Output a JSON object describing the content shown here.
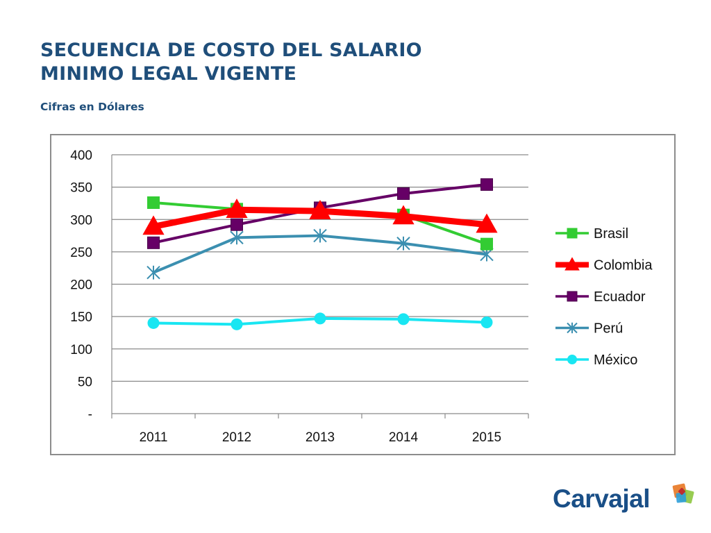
{
  "header": {
    "title_line1": "SECUENCIA DE COSTO DEL SALARIO",
    "title_line2": "MINIMO LEGAL VIGENTE",
    "subtitle": "Cifras en Dólares"
  },
  "brand": {
    "name": "Carvajal",
    "color": "#1a4f87",
    "logo_colors": [
      "#e87722",
      "#8dc63f",
      "#2e9fd9",
      "#c1272d"
    ]
  },
  "chart_data": {
    "type": "line",
    "categories": [
      "2011",
      "2012",
      "2013",
      "2014",
      "2015"
    ],
    "ylim": [
      0,
      400
    ],
    "yticks": [
      0,
      50,
      100,
      150,
      200,
      250,
      300,
      350,
      400
    ],
    "ytick_labels": [
      "-",
      "50",
      "100",
      "150",
      "200",
      "250",
      "300",
      "350",
      "400"
    ],
    "grid": true,
    "legend_position": "right",
    "title": "",
    "xlabel": "",
    "ylabel": "",
    "series": [
      {
        "name": "Brasil",
        "values": [
          326,
          316,
          313,
          307,
          262
        ],
        "color": "#33cc33",
        "marker": "square",
        "width": "thin"
      },
      {
        "name": "Colombia",
        "values": [
          289,
          315,
          313,
          305,
          292
        ],
        "color": "#ff0000",
        "marker": "triangle",
        "width": "thick"
      },
      {
        "name": "Ecuador",
        "values": [
          264,
          292,
          318,
          340,
          354
        ],
        "color": "#660066",
        "marker": "square",
        "width": "thin"
      },
      {
        "name": "Perú",
        "values": [
          218,
          272,
          275,
          263,
          246
        ],
        "color": "#3b8fb0",
        "marker": "star",
        "width": "thin"
      },
      {
        "name": "México",
        "values": [
          140,
          138,
          147,
          146,
          141
        ],
        "color": "#19e6f2",
        "marker": "circle",
        "width": "thin"
      }
    ]
  }
}
